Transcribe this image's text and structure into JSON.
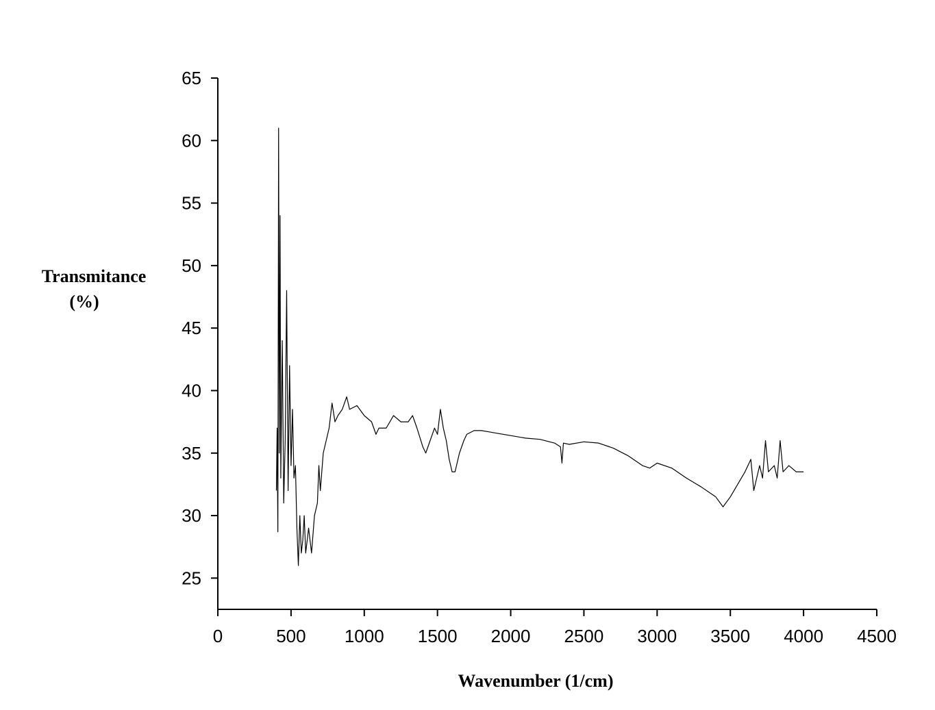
{
  "chart_data": {
    "type": "line",
    "ylabel": [
      "Transmitance",
      "(%)"
    ],
    "xlabel": "Wavenumber (1/cm)",
    "xlim": [
      0,
      4500
    ],
    "xticks": [
      0,
      500,
      1000,
      1500,
      2000,
      2500,
      3000,
      3500,
      4000,
      4500
    ],
    "ylim": [
      22.5,
      65
    ],
    "yticks": [
      25,
      30,
      35,
      40,
      45,
      50,
      55,
      60,
      65
    ],
    "series": [
      {
        "color": "#000000",
        "x": [
          400,
          405,
          410,
          415,
          420,
          425,
          430,
          440,
          450,
          460,
          470,
          480,
          490,
          500,
          510,
          520,
          530,
          540,
          550,
          560,
          570,
          580,
          590,
          600,
          620,
          640,
          660,
          680,
          690,
          700,
          720,
          740,
          760,
          780,
          800,
          820,
          850,
          880,
          900,
          950,
          1000,
          1050,
          1080,
          1100,
          1150,
          1200,
          1250,
          1300,
          1330,
          1360,
          1400,
          1420,
          1450,
          1480,
          1500,
          1520,
          1540,
          1560,
          1580,
          1600,
          1620,
          1650,
          1680,
          1700,
          1750,
          1800,
          1850,
          1900,
          2000,
          2100,
          2200,
          2300,
          2340,
          2350,
          2360,
          2400,
          2500,
          2600,
          2700,
          2800,
          2900,
          2950,
          3000,
          3100,
          3200,
          3300,
          3400,
          3450,
          3500,
          3550,
          3600,
          3640,
          3660,
          3700,
          3720,
          3740,
          3760,
          3800,
          3820,
          3840,
          3860,
          3900,
          3950,
          4000
        ],
        "values": [
          32,
          37,
          28.7,
          61,
          35,
          54,
          33,
          44,
          31,
          36,
          48,
          32,
          42,
          34,
          38.5,
          33,
          34,
          29,
          26,
          30,
          27,
          28,
          30,
          27,
          29,
          27,
          30,
          31,
          34,
          32,
          35,
          36,
          37,
          39,
          37.5,
          38,
          38.5,
          39.5,
          38.5,
          38.8,
          38,
          37.5,
          36.5,
          37,
          37,
          38,
          37.5,
          37.5,
          38,
          37,
          35.5,
          35,
          36,
          37,
          36.5,
          38.5,
          37,
          36,
          34.5,
          33.5,
          33.5,
          35,
          36,
          36.5,
          36.8,
          36.8,
          36.7,
          36.6,
          36.4,
          36.2,
          36.1,
          35.8,
          35.5,
          34.2,
          35.8,
          35.7,
          35.9,
          35.8,
          35.4,
          34.8,
          34,
          33.8,
          34.2,
          33.8,
          33,
          32.3,
          31.5,
          30.7,
          31.5,
          32.5,
          33.5,
          34.5,
          32,
          34,
          33,
          36,
          33.5,
          34,
          33,
          36,
          33.5,
          34,
          33.5,
          33.5
        ]
      }
    ]
  }
}
